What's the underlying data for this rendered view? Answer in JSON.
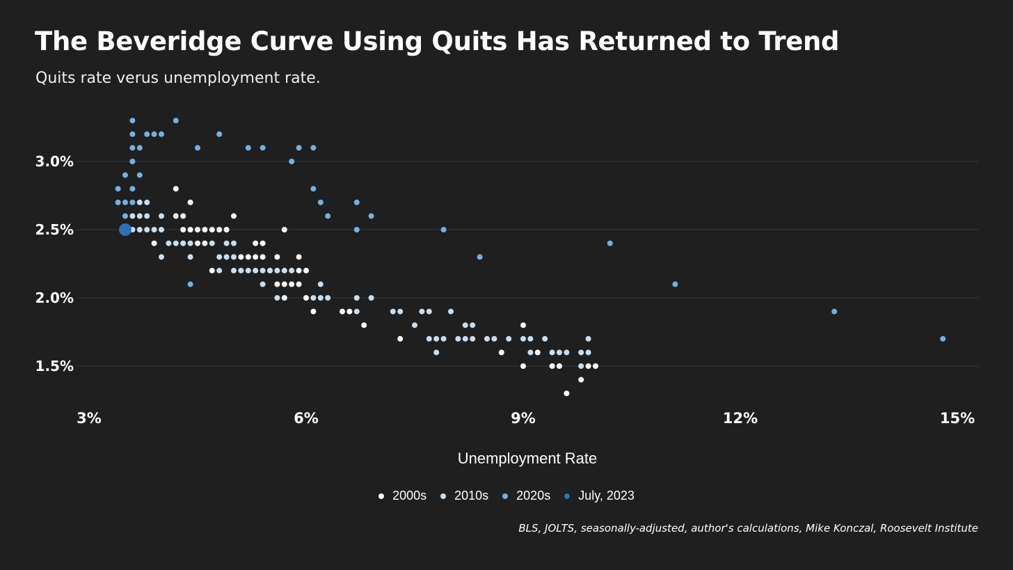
{
  "title": "The Beveridge Curve Using Quits Has Returned to Trend",
  "subtitle": "Quits rate verus unemployment rate.",
  "source": "BLS, JOLTS, seasonally-adjusted, author's calculations, Mike Konczal, Roosevelt Institute",
  "colors": {
    "background": "#1f1f1f",
    "gridline": "#3a3a3a",
    "2000s": "#ffffff",
    "2010s": "#c8def0",
    "2020s": "#72b2e2",
    "July, 2023": "#2a72b8"
  },
  "legend": [
    {
      "label": "2000s",
      "color": "#ffffff"
    },
    {
      "label": "2010s",
      "color": "#c8def0"
    },
    {
      "label": "2020s",
      "color": "#72b2e2"
    },
    {
      "label": "July, 2023",
      "color": "#2a72b8"
    }
  ],
  "chart_data": {
    "type": "scatter",
    "title": "The Beveridge Curve Using Quits Has Returned to Trend",
    "subtitle": "Quits rate verus unemployment rate.",
    "xlabel": "Unemployment Rate",
    "ylabel": "",
    "xlim": [
      3,
      15.3
    ],
    "ylim": [
      1.2,
      3.35
    ],
    "xticks": [
      "3%",
      "6%",
      "9%",
      "12%",
      "15%"
    ],
    "xtick_values": [
      3,
      6,
      9,
      12,
      15
    ],
    "yticks": [
      "1.5%",
      "2.0%",
      "2.5%",
      "3.0%"
    ],
    "ytick_values": [
      1.5,
      2.0,
      2.5,
      3.0
    ],
    "grid": "horizontal",
    "legend_position": "bottom",
    "series": [
      {
        "name": "2000s",
        "points": [
          [
            4.2,
            2.8
          ],
          [
            4.4,
            2.7
          ],
          [
            4.3,
            2.6
          ],
          [
            4.2,
            2.6
          ],
          [
            5.0,
            2.6
          ],
          [
            4.3,
            2.5
          ],
          [
            4.4,
            2.5
          ],
          [
            4.5,
            2.5
          ],
          [
            4.6,
            2.5
          ],
          [
            4.7,
            2.5
          ],
          [
            4.8,
            2.5
          ],
          [
            4.9,
            2.5
          ],
          [
            5.7,
            2.5
          ],
          [
            3.9,
            2.4
          ],
          [
            4.3,
            2.4
          ],
          [
            4.5,
            2.4
          ],
          [
            4.6,
            2.4
          ],
          [
            5.3,
            2.4
          ],
          [
            5.4,
            2.4
          ],
          [
            5.1,
            2.3
          ],
          [
            5.2,
            2.3
          ],
          [
            5.3,
            2.3
          ],
          [
            5.4,
            2.3
          ],
          [
            5.6,
            2.3
          ],
          [
            5.9,
            2.3
          ],
          [
            4.7,
            2.2
          ],
          [
            5.5,
            2.2
          ],
          [
            5.9,
            2.2
          ],
          [
            6.0,
            2.2
          ],
          [
            5.6,
            2.1
          ],
          [
            5.7,
            2.1
          ],
          [
            5.8,
            2.1
          ],
          [
            5.9,
            2.1
          ],
          [
            5.7,
            2.0
          ],
          [
            6.0,
            2.0
          ],
          [
            6.1,
            1.9
          ],
          [
            6.5,
            1.9
          ],
          [
            6.6,
            1.9
          ],
          [
            6.8,
            1.8
          ],
          [
            7.3,
            1.7
          ],
          [
            8.7,
            1.6
          ],
          [
            9.0,
            1.8
          ],
          [
            9.0,
            1.5
          ],
          [
            9.2,
            1.6
          ],
          [
            9.5,
            1.5
          ],
          [
            9.4,
            1.5
          ],
          [
            9.6,
            1.3
          ],
          [
            9.8,
            1.4
          ],
          [
            9.9,
            1.5
          ],
          [
            10.0,
            1.5
          ]
        ]
      },
      {
        "name": "2010s",
        "points": [
          [
            3.7,
            2.7
          ],
          [
            3.8,
            2.7
          ],
          [
            3.6,
            2.6
          ],
          [
            3.7,
            2.6
          ],
          [
            3.8,
            2.6
          ],
          [
            4.0,
            2.6
          ],
          [
            3.6,
            2.5
          ],
          [
            3.7,
            2.5
          ],
          [
            3.8,
            2.5
          ],
          [
            3.9,
            2.5
          ],
          [
            4.0,
            2.5
          ],
          [
            4.1,
            2.4
          ],
          [
            4.2,
            2.4
          ],
          [
            4.3,
            2.4
          ],
          [
            4.4,
            2.4
          ],
          [
            4.7,
            2.4
          ],
          [
            4.9,
            2.4
          ],
          [
            5.0,
            2.4
          ],
          [
            4.0,
            2.3
          ],
          [
            4.4,
            2.3
          ],
          [
            4.8,
            2.3
          ],
          [
            4.9,
            2.3
          ],
          [
            5.0,
            2.3
          ],
          [
            4.8,
            2.2
          ],
          [
            5.0,
            2.2
          ],
          [
            5.1,
            2.2
          ],
          [
            5.2,
            2.2
          ],
          [
            5.3,
            2.2
          ],
          [
            5.4,
            2.2
          ],
          [
            5.5,
            2.2
          ],
          [
            5.6,
            2.2
          ],
          [
            5.7,
            2.2
          ],
          [
            5.8,
            2.2
          ],
          [
            5.4,
            2.1
          ],
          [
            6.2,
            2.1
          ],
          [
            5.6,
            2.0
          ],
          [
            6.1,
            2.0
          ],
          [
            6.2,
            2.0
          ],
          [
            6.3,
            2.0
          ],
          [
            6.7,
            2.0
          ],
          [
            6.9,
            2.0
          ],
          [
            6.7,
            1.9
          ],
          [
            7.2,
            1.9
          ],
          [
            7.3,
            1.9
          ],
          [
            7.6,
            1.9
          ],
          [
            7.7,
            1.9
          ],
          [
            8.0,
            1.9
          ],
          [
            7.5,
            1.8
          ],
          [
            8.2,
            1.8
          ],
          [
            8.3,
            1.8
          ],
          [
            7.7,
            1.7
          ],
          [
            7.8,
            1.7
          ],
          [
            7.9,
            1.7
          ],
          [
            8.1,
            1.7
          ],
          [
            8.2,
            1.7
          ],
          [
            8.3,
            1.7
          ],
          [
            8.5,
            1.7
          ],
          [
            8.6,
            1.7
          ],
          [
            8.8,
            1.7
          ],
          [
            9.0,
            1.7
          ],
          [
            9.1,
            1.7
          ],
          [
            9.3,
            1.7
          ],
          [
            9.9,
            1.7
          ],
          [
            7.8,
            1.6
          ],
          [
            9.1,
            1.6
          ],
          [
            9.4,
            1.6
          ],
          [
            9.5,
            1.6
          ],
          [
            9.6,
            1.6
          ],
          [
            9.8,
            1.6
          ],
          [
            9.9,
            1.6
          ],
          [
            9.8,
            1.5
          ]
        ]
      },
      {
        "name": "2020s",
        "points": [
          [
            3.6,
            3.3
          ],
          [
            4.2,
            3.3
          ],
          [
            3.6,
            3.2
          ],
          [
            3.8,
            3.2
          ],
          [
            3.9,
            3.2
          ],
          [
            4.0,
            3.2
          ],
          [
            4.8,
            3.2
          ],
          [
            3.6,
            3.1
          ],
          [
            3.7,
            3.1
          ],
          [
            4.5,
            3.1
          ],
          [
            5.2,
            3.1
          ],
          [
            5.4,
            3.1
          ],
          [
            5.9,
            3.1
          ],
          [
            6.1,
            3.1
          ],
          [
            3.6,
            3.0
          ],
          [
            5.8,
            3.0
          ],
          [
            3.5,
            2.9
          ],
          [
            3.7,
            2.9
          ],
          [
            3.4,
            2.8
          ],
          [
            3.6,
            2.8
          ],
          [
            6.1,
            2.8
          ],
          [
            3.4,
            2.7
          ],
          [
            3.5,
            2.7
          ],
          [
            3.6,
            2.7
          ],
          [
            6.2,
            2.7
          ],
          [
            6.7,
            2.7
          ],
          [
            3.5,
            2.6
          ],
          [
            6.3,
            2.6
          ],
          [
            6.9,
            2.6
          ],
          [
            6.7,
            2.5
          ],
          [
            7.9,
            2.5
          ],
          [
            10.2,
            2.4
          ],
          [
            8.4,
            2.3
          ],
          [
            4.4,
            2.1
          ],
          [
            11.1,
            2.1
          ],
          [
            13.3,
            1.9
          ],
          [
            14.8,
            1.7
          ]
        ]
      },
      {
        "name": "July, 2023",
        "points": [
          [
            3.5,
            2.5
          ]
        ]
      }
    ]
  }
}
